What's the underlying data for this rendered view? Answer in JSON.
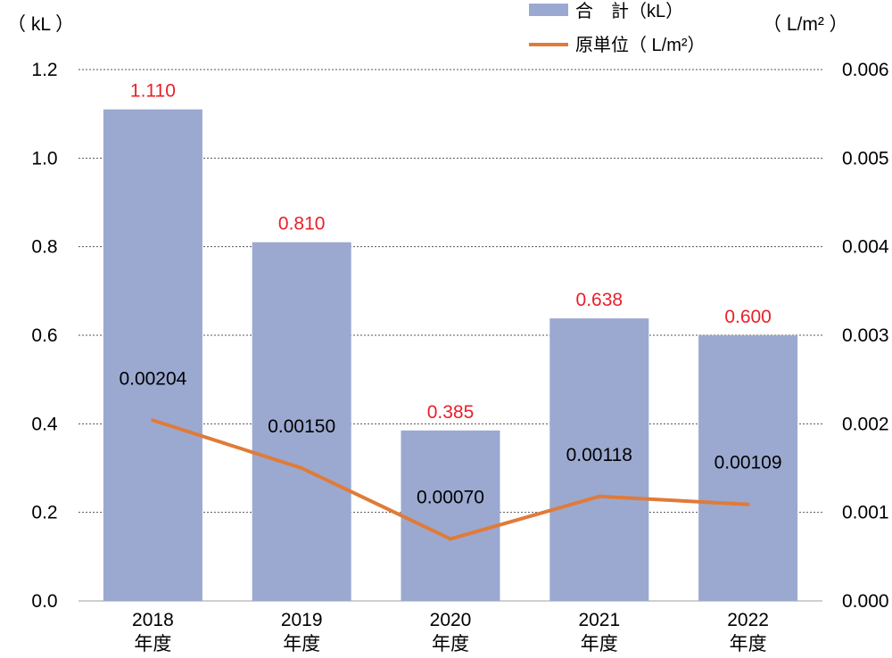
{
  "chart_data": {
    "type": "bar",
    "categories": [
      "2018\n年度",
      "2019\n年度",
      "2020\n年度",
      "2021\n年度",
      "2022\n年度"
    ],
    "series": [
      {
        "name": "合　計（kL）",
        "type": "bar",
        "axis": "left",
        "values": [
          1.11,
          0.81,
          0.385,
          0.638,
          0.6
        ],
        "labels": [
          "1.110",
          "0.810",
          "0.385",
          "0.638",
          "0.600"
        ],
        "color": "#9ba9d0",
        "label_color": "#e8202a"
      },
      {
        "name": "原単位（ L/m²）",
        "type": "line",
        "axis": "right",
        "values": [
          0.00204,
          0.0015,
          0.0007,
          0.00118,
          0.00109
        ],
        "labels": [
          "0.00204",
          "0.00150",
          "0.00070",
          "0.00118",
          "0.00109"
        ],
        "color": "#e07b39"
      }
    ],
    "y_left": {
      "label": "（ kL ）",
      "ylim": [
        0,
        1.2
      ],
      "ticks": [
        "0.0",
        "0.2",
        "0.4",
        "0.6",
        "0.8",
        "1.0",
        "1.2"
      ]
    },
    "y_right": {
      "label": "（ L/m² ）",
      "ylim": [
        0,
        0.006
      ],
      "ticks": [
        "0.000",
        "0.001",
        "0.002",
        "0.003",
        "0.004",
        "0.005",
        "0.006"
      ]
    },
    "grid": "dotted horizontal",
    "legend_position": "top-center"
  }
}
